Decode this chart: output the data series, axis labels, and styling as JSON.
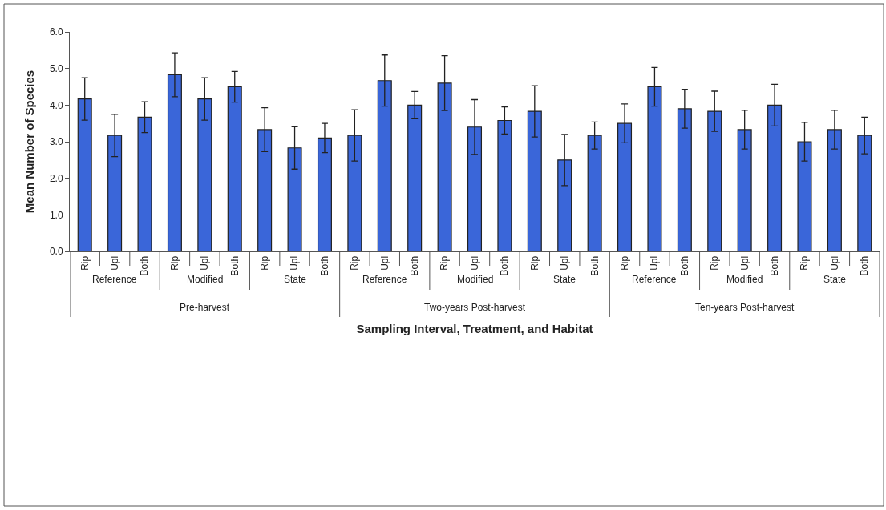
{
  "chart_data": {
    "type": "bar",
    "xlabel": "Sampling Interval, Treatment, and Habitat",
    "ylabel": "Mean Number of Species",
    "categories": [
      "Rip",
      "Upl",
      "Both",
      "Rip",
      "Upl",
      "Both",
      "Rip",
      "Upl",
      "Both",
      "Rip",
      "Upl",
      "Both",
      "Rip",
      "Upl",
      "Both",
      "Rip",
      "Upl",
      "Both",
      "Rip",
      "Upl",
      "Both",
      "Rip",
      "Upl",
      "Both",
      "Rip",
      "Upl",
      "Both"
    ],
    "values": [
      4.17,
      3.17,
      3.67,
      4.83,
      4.17,
      4.5,
      3.33,
      2.83,
      3.1,
      3.17,
      4.67,
      4.0,
      4.6,
      3.4,
      3.58,
      3.83,
      2.5,
      3.17,
      3.5,
      4.5,
      3.9,
      3.83,
      3.33,
      4.0,
      3.0,
      3.33,
      3.17
    ],
    "errors": [
      0.58,
      0.58,
      0.42,
      0.6,
      0.58,
      0.42,
      0.6,
      0.58,
      0.4,
      0.7,
      0.7,
      0.37,
      0.75,
      0.75,
      0.37,
      0.7,
      0.7,
      0.37,
      0.53,
      0.53,
      0.53,
      0.55,
      0.53,
      0.57,
      0.53,
      0.53,
      0.5
    ],
    "color": "#3a66d9",
    "ylim": [
      0,
      6
    ],
    "yticks": [
      {
        "value": 0,
        "label": "0.0"
      },
      {
        "value": 1,
        "label": "1.0"
      },
      {
        "value": 2,
        "label": "2.0"
      },
      {
        "value": 3,
        "label": "3.0"
      },
      {
        "value": 4,
        "label": "4.0"
      },
      {
        "value": 5,
        "label": "5.0"
      },
      {
        "value": 6,
        "label": "6.0"
      }
    ],
    "annotations": [
      "Reference",
      "Modified",
      "State",
      "Reference",
      "Modified",
      "State",
      "Reference",
      "Modified",
      "State",
      "Pre-harvest",
      "Two-years Post-harvest",
      "Ten-years Post-harvest"
    ]
  }
}
